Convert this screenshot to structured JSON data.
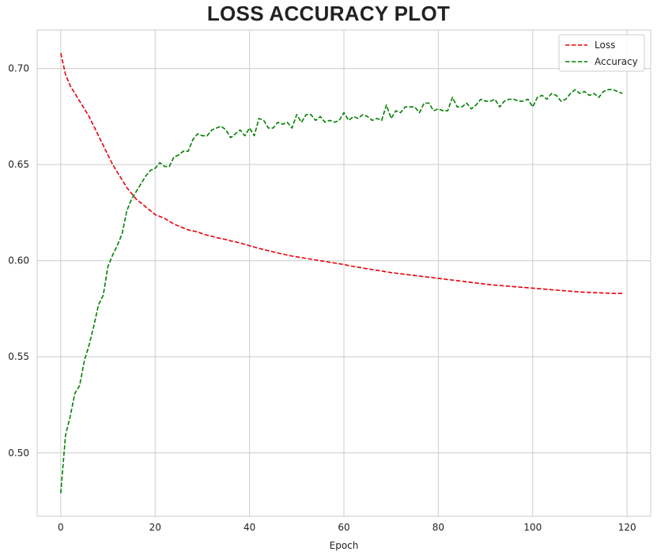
{
  "chart_data": {
    "type": "line",
    "title": "LOSS ACCURACY PLOT",
    "xlabel": "Epoch",
    "ylabel": "",
    "xlim": [
      -5,
      125
    ],
    "ylim": [
      0.467,
      0.72
    ],
    "xticks": [
      0,
      20,
      40,
      60,
      80,
      100,
      120
    ],
    "yticks": [
      0.5,
      0.55,
      0.6,
      0.65,
      0.7
    ],
    "ytick_labels": [
      "0.50",
      "0.55",
      "0.60",
      "0.65",
      "0.70"
    ],
    "grid": true,
    "legend_position": "top-right",
    "series": [
      {
        "name": "Loss",
        "color": "#e8000b",
        "linestyle": "dashed",
        "x_start": 0,
        "x_step": 1,
        "values": [
          0.708,
          0.697,
          0.691,
          0.687,
          0.683,
          0.679,
          0.675,
          0.67,
          0.665,
          0.66,
          0.655,
          0.65,
          0.646,
          0.642,
          0.638,
          0.635,
          0.632,
          0.63,
          0.628,
          0.626,
          0.624,
          0.623,
          0.622,
          0.6205,
          0.619,
          0.618,
          0.617,
          0.616,
          0.6155,
          0.615,
          0.614,
          0.6133,
          0.6127,
          0.612,
          0.6115,
          0.611,
          0.6103,
          0.6098,
          0.6092,
          0.6085,
          0.6078,
          0.6071,
          0.6064,
          0.6058,
          0.6052,
          0.6046,
          0.604,
          0.6035,
          0.6029,
          0.6024,
          0.602,
          0.6016,
          0.6012,
          0.6008,
          0.6004,
          0.6,
          0.5996,
          0.5992,
          0.5988,
          0.5984,
          0.598,
          0.5975,
          0.597,
          0.5966,
          0.5962,
          0.5958,
          0.5954,
          0.595,
          0.5946,
          0.5942,
          0.5938,
          0.5935,
          0.5932,
          0.5929,
          0.5926,
          0.5923,
          0.592,
          0.5917,
          0.5914,
          0.5911,
          0.5908,
          0.5905,
          0.5902,
          0.5899,
          0.5896,
          0.5893,
          0.589,
          0.5887,
          0.5884,
          0.5881,
          0.5878,
          0.5875,
          0.5873,
          0.5871,
          0.5869,
          0.5867,
          0.5865,
          0.5863,
          0.5861,
          0.5859,
          0.5857,
          0.5855,
          0.5853,
          0.5851,
          0.5849,
          0.5847,
          0.5845,
          0.5843,
          0.5841,
          0.5839,
          0.5837,
          0.5836,
          0.5835,
          0.5834,
          0.5833,
          0.5832,
          0.5831,
          0.583,
          0.583,
          0.583
        ]
      },
      {
        "name": "Accuracy",
        "color": "#008000",
        "linestyle": "dashed",
        "x_start": 0,
        "x_step": 1,
        "values": [
          0.479,
          0.509,
          0.519,
          0.531,
          0.535,
          0.548,
          0.556,
          0.566,
          0.577,
          0.582,
          0.597,
          0.603,
          0.608,
          0.614,
          0.626,
          0.632,
          0.636,
          0.64,
          0.644,
          0.647,
          0.648,
          0.651,
          0.649,
          0.649,
          0.654,
          0.655,
          0.657,
          0.657,
          0.663,
          0.666,
          0.665,
          0.665,
          0.668,
          0.669,
          0.67,
          0.668,
          0.664,
          0.666,
          0.668,
          0.665,
          0.669,
          0.665,
          0.674,
          0.673,
          0.669,
          0.669,
          0.672,
          0.671,
          0.672,
          0.669,
          0.676,
          0.672,
          0.676,
          0.676,
          0.673,
          0.675,
          0.672,
          0.673,
          0.672,
          0.673,
          0.677,
          0.673,
          0.675,
          0.674,
          0.676,
          0.675,
          0.673,
          0.674,
          0.673,
          0.681,
          0.674,
          0.678,
          0.677,
          0.68,
          0.68,
          0.68,
          0.677,
          0.682,
          0.682,
          0.678,
          0.679,
          0.678,
          0.678,
          0.685,
          0.68,
          0.68,
          0.682,
          0.679,
          0.681,
          0.684,
          0.683,
          0.683,
          0.684,
          0.68,
          0.683,
          0.684,
          0.684,
          0.683,
          0.683,
          0.684,
          0.68,
          0.685,
          0.686,
          0.684,
          0.687,
          0.686,
          0.683,
          0.684,
          0.687,
          0.689,
          0.687,
          0.688,
          0.686,
          0.687,
          0.685,
          0.688,
          0.689,
          0.689,
          0.688,
          0.687
        ]
      }
    ]
  }
}
